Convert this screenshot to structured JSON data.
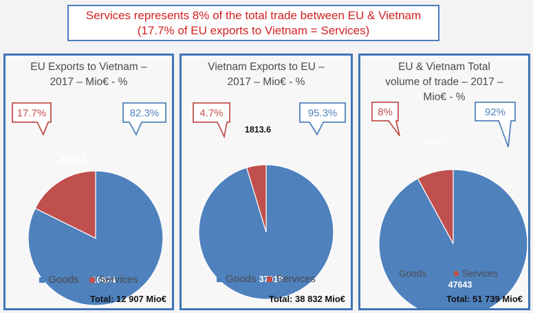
{
  "header": {
    "line1": "Services represents 8% of the total trade between EU & Vietnam",
    "line2": "(17.7% of EU exports to Vietnam = Services)"
  },
  "colors": {
    "goods": "#4f81bd",
    "services": "#c0504d",
    "callout_red": "#c0504d",
    "callout_blue": "#4f81bd"
  },
  "legend": {
    "goods": "Goods",
    "services": "Services"
  },
  "chart_data": [
    {
      "type": "pie",
      "title_lines": [
        "EU Exports to Vietnam  –",
        "2017 – Mio€ - %"
      ],
      "categories": [
        "Goods",
        "Services"
      ],
      "values": [
        10624,
        2283.1
      ],
      "value_labels": [
        "10624",
        "2283.1"
      ],
      "percent_labels": [
        "82.3%",
        "17.7%"
      ],
      "total": "Total: 12 907 Mio€",
      "legend_position": "bottom"
    },
    {
      "type": "pie",
      "title_lines": [
        "Vietnam Exports to EU –",
        "2017 – Mio€ - %"
      ],
      "categories": [
        "Goods",
        "Services"
      ],
      "values": [
        37019,
        1813.6
      ],
      "value_labels": [
        "37019",
        "1813.6"
      ],
      "percent_labels": [
        "95.3%",
        "4.7%"
      ],
      "total": "Total: 38 832 Mio€",
      "legend_position": "bottom"
    },
    {
      "type": "pie",
      "title_lines": [
        "EU & Vietnam Total",
        "volume of trade – 2017 –",
        "Mio€ - %"
      ],
      "categories": [
        "Goods",
        "Services"
      ],
      "values": [
        47643,
        4096.7
      ],
      "value_labels": [
        "47643",
        "4096.7"
      ],
      "percent_labels": [
        "92%",
        "8%"
      ],
      "total": "Total: 51 739 Mio€",
      "legend_position": "bottom"
    }
  ]
}
